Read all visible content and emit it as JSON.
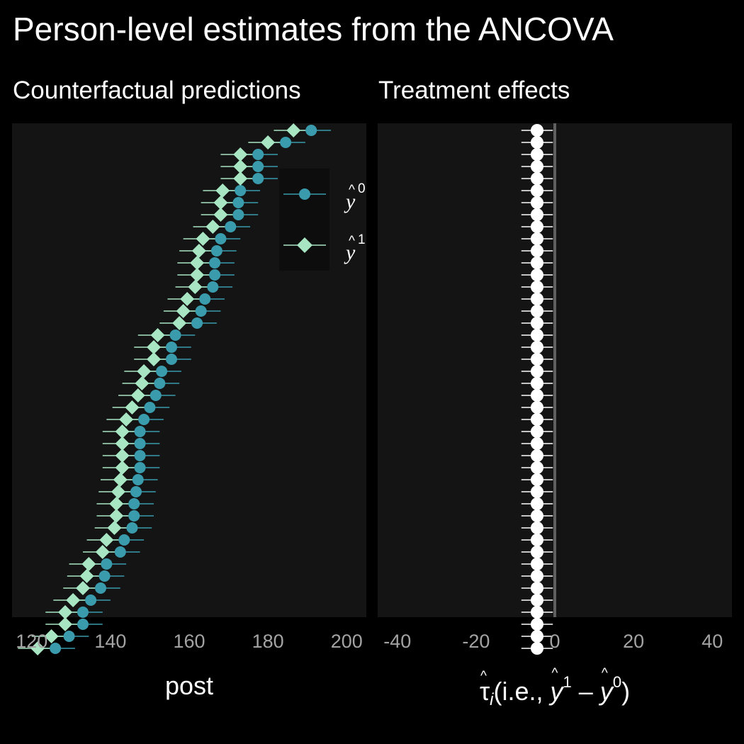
{
  "title": "Person-level estimates from the ANCOVA",
  "chart_data": [
    {
      "type": "scatter",
      "panel": "left",
      "subtitle": "Counterfactual predictions",
      "xlabel": "post",
      "xlim": [
        115,
        205
      ],
      "xticks": [
        120,
        140,
        160,
        180,
        200
      ],
      "grid": false,
      "legend_position": "top-right",
      "error_half_width": 5,
      "series": [
        {
          "name": "y0",
          "color": "#3a9bad",
          "marker": "circle",
          "values": [
            191,
            184.5,
            177.5,
            177.5,
            177.5,
            173,
            172.5,
            172.5,
            170.5,
            168,
            167,
            166.5,
            166.5,
            166,
            164,
            163,
            162,
            156.5,
            155.5,
            155.5,
            153,
            152.5,
            151.5,
            150,
            148.5,
            147.5,
            147.5,
            147.5,
            147.5,
            147,
            146.5,
            146,
            146,
            145.5,
            143.5,
            142.5,
            139,
            138.5,
            137.5,
            135,
            133,
            133,
            129.5,
            126
          ]
        },
        {
          "name": "y1",
          "color": "#a8e6c3",
          "marker": "diamond",
          "values": [
            186.5,
            180,
            173,
            173,
            173,
            168.5,
            168,
            168,
            166,
            163.5,
            162.5,
            162,
            162,
            161.5,
            159.5,
            158.5,
            157.5,
            152,
            151,
            151,
            148.5,
            148,
            147,
            145.5,
            144,
            143,
            143,
            143,
            143,
            142.5,
            142,
            141.5,
            141.5,
            141,
            139,
            138,
            134.5,
            134,
            133,
            130.5,
            128.5,
            128.5,
            125,
            121.5
          ]
        }
      ]
    },
    {
      "type": "scatter",
      "panel": "right",
      "subtitle": "Treatment effects",
      "xlabel_parts": {
        "tau": "τ",
        "i": "i",
        "open": "(i.e., ",
        "y": "y",
        "one": "1",
        "minus": " – ",
        "zero": "0",
        "close": ")"
      },
      "xlim": [
        -45,
        45
      ],
      "xticks": [
        -40,
        -20,
        0,
        20,
        40
      ],
      "reference_line": 0,
      "grid": false,
      "n_points": 44,
      "effect": -4.5,
      "error_half_width": 4,
      "color": "#ffffff"
    }
  ]
}
